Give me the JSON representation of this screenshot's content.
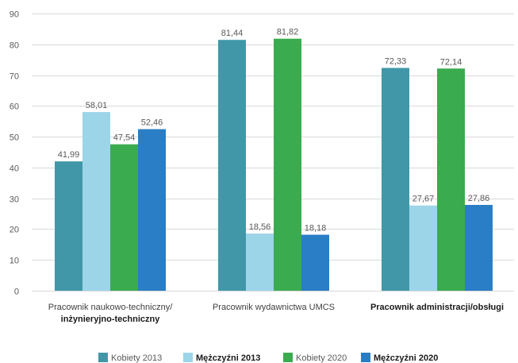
{
  "chart_data": {
    "type": "bar",
    "ylim": [
      0,
      90
    ],
    "ytick_step": 10,
    "grid": true,
    "legend_position": "bottom",
    "categories": [
      {
        "lines": [
          "Pracownik naukowo-techniczny/",
          "inżynieryjno-techniczny"
        ],
        "bold_lines": [
          false,
          true
        ]
      },
      {
        "lines": [
          "Pracownik wydawnictwa UMCS"
        ],
        "bold_lines": [
          false
        ]
      },
      {
        "lines": [
          "Pracownik administracji/obsługi"
        ],
        "bold_lines": [
          true
        ]
      }
    ],
    "series": [
      {
        "name": "Kobiety 2013",
        "color": "#4197a8",
        "bold": false,
        "values": [
          41.99,
          81.44,
          72.33
        ],
        "labels": [
          "41,99",
          "81,44",
          "72,33"
        ]
      },
      {
        "name": "Mężczyźni 2013",
        "color": "#9dd5e8",
        "bold": true,
        "values": [
          58.01,
          18.56,
          27.67
        ],
        "labels": [
          "58,01",
          "18,56",
          "27,67"
        ]
      },
      {
        "name": "Kobiety 2020",
        "color": "#3bab4f",
        "bold": false,
        "values": [
          47.54,
          81.82,
          72.14
        ],
        "labels": [
          "47,54",
          "81,82",
          "72,14"
        ]
      },
      {
        "name": "Mężczyźni 2020",
        "color": "#2a7ec5",
        "bold": true,
        "values": [
          52.46,
          18.18,
          27.86
        ],
        "labels": [
          "52,46",
          "18,18",
          "27,86"
        ]
      }
    ]
  }
}
